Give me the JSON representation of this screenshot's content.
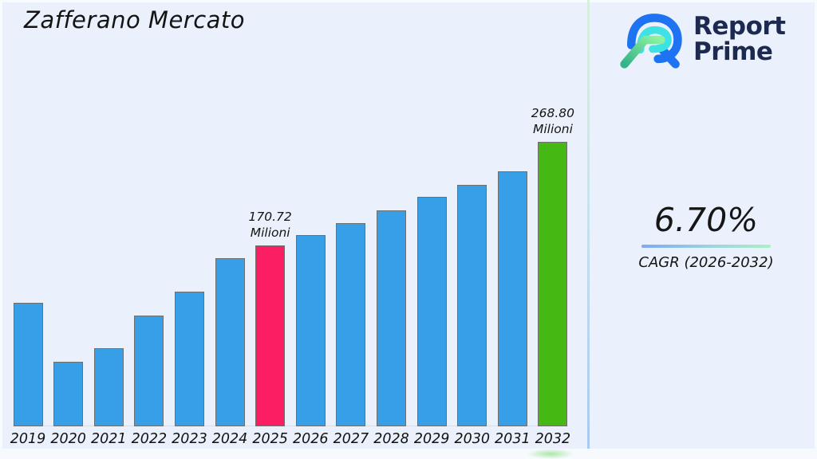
{
  "title": "Zafferano Mercato",
  "brand": {
    "name_line1": "Report",
    "name_line2": "Prime",
    "navy": "#1c2950"
  },
  "cagr": {
    "value": "6.70%",
    "label": "CAGR (2026-2032)"
  },
  "chart_data": {
    "type": "bar",
    "title": "Zafferano Mercato",
    "unit": "Milioni",
    "categories": [
      "2019",
      "2020",
      "2021",
      "2022",
      "2023",
      "2024",
      "2025",
      "2026",
      "2027",
      "2028",
      "2029",
      "2030",
      "2031",
      "2032"
    ],
    "values": [
      117,
      61,
      74,
      105,
      127,
      159,
      170.72,
      181,
      192,
      204,
      217,
      228,
      241,
      268.8
    ],
    "bar_color": "#379fe8",
    "bar_border": "#6e6e6e",
    "annotations": [
      {
        "category": "2025",
        "value_label": "170.72",
        "unit_label": "Milioni",
        "color": "#fb1e63"
      },
      {
        "category": "2032",
        "value_label": "268.80",
        "unit_label": "Milioni",
        "color": "#46b814"
      }
    ],
    "xlabel": "",
    "ylabel": "",
    "ylim": [
      0,
      280
    ],
    "grid": false,
    "legend": false
  }
}
